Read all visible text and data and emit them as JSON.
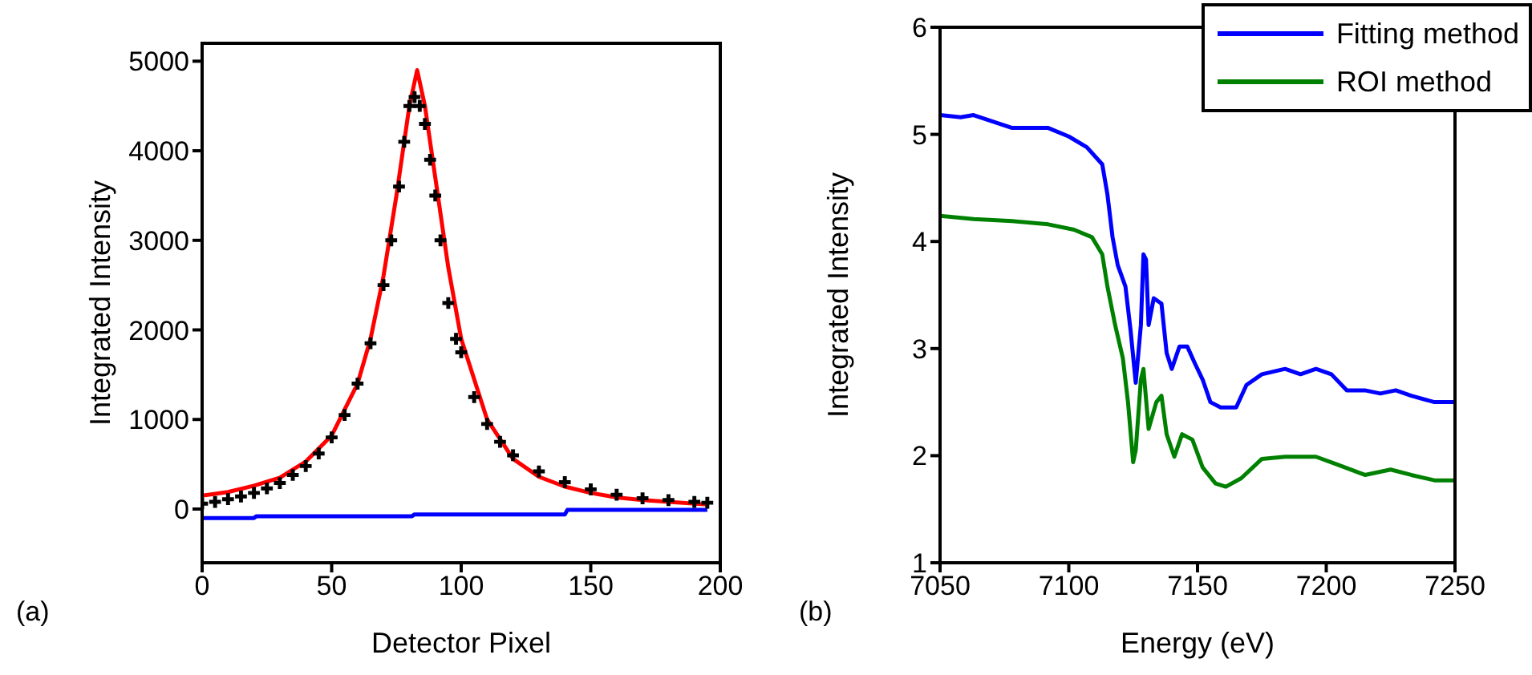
{
  "chart_data": [
    {
      "type": "line",
      "xlabel": "Detector Pixel",
      "ylabel": "Integrated Intensity",
      "xlim": [
        0,
        200
      ],
      "xticks": [
        0,
        50,
        100,
        150,
        200
      ],
      "ylim": [
        -600,
        5200
      ],
      "yticks": [
        0,
        1000,
        2000,
        3000,
        4000,
        5000
      ],
      "grid": false,
      "annotations": [
        "(a)"
      ],
      "series": [
        {
          "type": "scatter",
          "color": "#000000",
          "marker": "cross",
          "x": [
            0,
            5,
            10,
            15,
            20,
            25,
            30,
            35,
            40,
            45,
            50,
            55,
            60,
            65,
            70,
            73,
            76,
            78,
            80,
            82,
            84,
            86,
            88,
            90,
            92,
            95,
            98,
            100,
            105,
            110,
            115,
            120,
            130,
            140,
            150,
            160,
            170,
            180,
            190,
            195
          ],
          "values": [
            60,
            80,
            110,
            140,
            180,
            230,
            290,
            380,
            480,
            620,
            800,
            1050,
            1400,
            1850,
            2500,
            3000,
            3600,
            4100,
            4500,
            4600,
            4500,
            4300,
            3900,
            3500,
            3000,
            2300,
            1900,
            1750,
            1250,
            950,
            750,
            600,
            420,
            300,
            220,
            160,
            120,
            100,
            80,
            70
          ]
        },
        {
          "color": "#ff0000",
          "x": [
            0,
            10,
            20,
            30,
            40,
            50,
            60,
            65,
            70,
            75,
            80,
            83,
            86,
            90,
            95,
            100,
            110,
            120,
            130,
            140,
            150,
            160,
            170,
            180,
            195
          ],
          "values": [
            150,
            190,
            260,
            350,
            530,
            820,
            1400,
            1900,
            2600,
            3500,
            4500,
            4900,
            4500,
            3700,
            2700,
            1900,
            1000,
            560,
            360,
            250,
            180,
            130,
            100,
            80,
            50
          ]
        },
        {
          "color": "#0000ff",
          "x": [
            0,
            20,
            21,
            81,
            82,
            140,
            141,
            195
          ],
          "values": [
            -100,
            -100,
            -80,
            -80,
            -60,
            -60,
            -10,
            -10
          ]
        }
      ]
    },
    {
      "type": "line",
      "xlabel": "Energy (eV)",
      "ylabel": "Integrated Intensity",
      "xlim": [
        7050,
        7250
      ],
      "xticks": [
        7050,
        7100,
        7150,
        7200,
        7250
      ],
      "ylim": [
        1,
        6
      ],
      "yticks": [
        1,
        2,
        3,
        4,
        5,
        6
      ],
      "grid": false,
      "legend": "top right",
      "annotations": [
        "(b)"
      ],
      "series": [
        {
          "name": "Fitting method",
          "color": "#0000ff",
          "x": [
            7050,
            7058,
            7063,
            7078,
            7092,
            7100,
            7107,
            7113,
            7115,
            7117,
            7119,
            7122,
            7124,
            7126,
            7128,
            7129,
            7130,
            7131,
            7133,
            7136,
            7138,
            7140,
            7143,
            7146,
            7149,
            7152,
            7155,
            7159,
            7165,
            7169,
            7175,
            7184,
            7190,
            7196,
            7202,
            7208,
            7215,
            7221,
            7227,
            7233,
            7242,
            7250
          ],
          "values": [
            5.18,
            5.16,
            5.18,
            5.06,
            5.06,
            4.98,
            4.88,
            4.72,
            4.44,
            4.04,
            3.78,
            3.58,
            3.17,
            2.68,
            3.22,
            3.88,
            3.83,
            3.22,
            3.47,
            3.42,
            2.96,
            2.81,
            3.02,
            3.02,
            2.86,
            2.71,
            2.5,
            2.45,
            2.45,
            2.66,
            2.76,
            2.81,
            2.76,
            2.81,
            2.76,
            2.61,
            2.61,
            2.58,
            2.61,
            2.56,
            2.5,
            2.5
          ]
        },
        {
          "name": "ROI method",
          "color": "#008000",
          "x": [
            7050,
            7063,
            7078,
            7092,
            7102,
            7109,
            7113,
            7115,
            7118,
            7121,
            7123,
            7125,
            7126,
            7128,
            7129,
            7131,
            7134,
            7136,
            7138,
            7141,
            7144,
            7148,
            7152,
            7157,
            7161,
            7167,
            7175,
            7184,
            7196,
            7204,
            7215,
            7225,
            7233,
            7242,
            7250
          ],
          "values": [
            4.24,
            4.21,
            4.19,
            4.16,
            4.11,
            4.04,
            3.88,
            3.58,
            3.22,
            2.91,
            2.5,
            1.94,
            2.05,
            2.71,
            2.81,
            2.25,
            2.5,
            2.56,
            2.2,
            1.99,
            2.2,
            2.15,
            1.89,
            1.74,
            1.71,
            1.79,
            1.97,
            1.99,
            1.99,
            1.92,
            1.82,
            1.87,
            1.82,
            1.77,
            1.77
          ]
        }
      ]
    }
  ]
}
